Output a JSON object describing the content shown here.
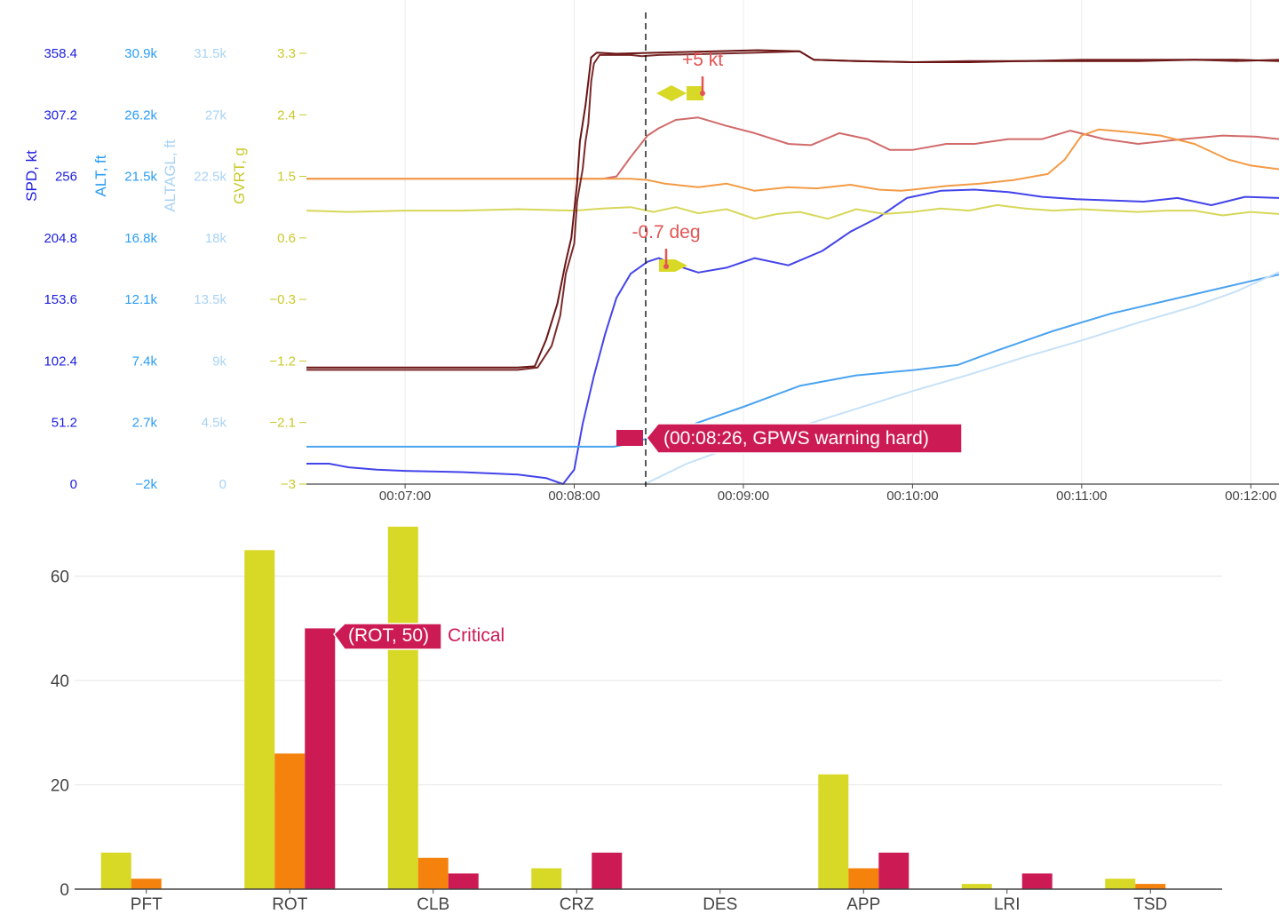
{
  "chart_data": [
    {
      "type": "line",
      "title": "",
      "x_ticks": [
        "00:07:00",
        "00:08:00",
        "00:09:00",
        "00:10:00",
        "00:11:00",
        "00:12:00"
      ],
      "x_tick_seconds": [
        420,
        480,
        540,
        600,
        660,
        720
      ],
      "x_range_seconds": [
        385,
        730
      ],
      "grid": true,
      "y_axes": [
        {
          "id": "spd",
          "label": "SPD, kt",
          "color": "#1e1ee0",
          "range": [
            0,
            358.4
          ],
          "ticks": [
            "0",
            "51.2",
            "102.4",
            "153.6",
            "204.8",
            "256",
            "307.2",
            "358.4"
          ]
        },
        {
          "id": "alt",
          "label": "ALT, ft",
          "color": "#2a9df4",
          "range": [
            -2000,
            30900
          ],
          "ticks": [
            "−2k",
            "2.7k",
            "7.4k",
            "12.1k",
            "16.8k",
            "21.5k",
            "26.2k",
            "30.9k"
          ]
        },
        {
          "id": "altagl",
          "label": "ALTAGL, ft",
          "color": "#a9d3f5",
          "range": [
            0,
            31500
          ],
          "ticks": [
            "0",
            "4.5k",
            "9k",
            "13.5k",
            "18k",
            "22.5k",
            "27k",
            "31.5k"
          ]
        },
        {
          "id": "gvrt",
          "label": "GVRT, g",
          "color": "#c9c92a",
          "range": [
            -3,
            3.3
          ],
          "ticks": [
            "−3",
            "−2.1",
            "−1.2",
            "−0.3",
            "0.6",
            "1.5",
            "2.4",
            "3.3"
          ]
        }
      ],
      "series": [
        {
          "axis": "spd",
          "color": "#4343ea",
          "points": [
            [
              385,
              17
            ],
            [
              393,
              17
            ],
            [
              400,
              14
            ],
            [
              410,
              12
            ],
            [
              420,
              11
            ],
            [
              440,
              10
            ],
            [
              460,
              8
            ],
            [
              470,
              5
            ],
            [
              476,
              0
            ],
            [
              480,
              12
            ],
            [
              483,
              50
            ],
            [
              487,
              90
            ],
            [
              491,
              125
            ],
            [
              495,
              155
            ],
            [
              500,
              175
            ],
            [
              506,
              185
            ],
            [
              510,
              188
            ],
            [
              516,
              182
            ],
            [
              524,
              176
            ],
            [
              534,
              180
            ],
            [
              544,
              188
            ],
            [
              556,
              182
            ],
            [
              568,
              194
            ],
            [
              578,
              210
            ],
            [
              588,
              222
            ],
            [
              598,
              238
            ],
            [
              610,
              244
            ],
            [
              622,
              245
            ],
            [
              634,
              243
            ],
            [
              646,
              239
            ],
            [
              658,
              237
            ],
            [
              670,
              236
            ],
            [
              682,
              235
            ],
            [
              694,
              238
            ],
            [
              706,
              232
            ],
            [
              718,
              239
            ],
            [
              730,
              238
            ]
          ]
        },
        {
          "axis": "spd",
          "color": "#d16a6a",
          "points": [
            [
              385,
              254
            ],
            [
              420,
              254
            ],
            [
              460,
              254
            ],
            [
              490,
              254
            ],
            [
              495,
              256
            ],
            [
              500,
              272
            ],
            [
              506,
              290
            ],
            [
              510,
              296
            ],
            [
              516,
              303
            ],
            [
              524,
              305
            ],
            [
              534,
              298
            ],
            [
              544,
              292
            ],
            [
              556,
              283
            ],
            [
              564,
              282
            ],
            [
              574,
              292
            ],
            [
              584,
              287
            ],
            [
              592,
              278
            ],
            [
              600,
              278
            ],
            [
              612,
              283
            ],
            [
              622,
              283
            ],
            [
              634,
              287
            ],
            [
              646,
              287
            ],
            [
              656,
              294
            ],
            [
              668,
              287
            ],
            [
              680,
              283
            ],
            [
              696,
              287
            ],
            [
              710,
              290
            ],
            [
              722,
              289
            ],
            [
              730,
              287
            ]
          ]
        },
        {
          "axis": "spd",
          "color": "#f39b45",
          "points": [
            [
              385,
              254
            ],
            [
              420,
              254
            ],
            [
              460,
              254
            ],
            [
              490,
              254
            ],
            [
              500,
              254
            ],
            [
              506,
              253
            ],
            [
              512,
              250
            ],
            [
              524,
              247
            ],
            [
              534,
              250
            ],
            [
              544,
              244
            ],
            [
              556,
              247
            ],
            [
              566,
              246
            ],
            [
              578,
              249
            ],
            [
              588,
              245
            ],
            [
              596,
              244
            ],
            [
              600,
              245
            ],
            [
              612,
              248
            ],
            [
              624,
              250
            ],
            [
              636,
              253
            ],
            [
              648,
              258
            ],
            [
              654,
              270
            ],
            [
              660,
              290
            ],
            [
              666,
              295
            ],
            [
              676,
              293
            ],
            [
              688,
              290
            ],
            [
              700,
              283
            ],
            [
              712,
              270
            ],
            [
              720,
              265
            ],
            [
              730,
              262
            ]
          ]
        },
        {
          "axis": "gvrt",
          "color": "#d7d75a",
          "points": [
            [
              385,
              1.0
            ],
            [
              400,
              0.98
            ],
            [
              420,
              1.0
            ],
            [
              440,
              1.0
            ],
            [
              460,
              1.02
            ],
            [
              480,
              1.0
            ],
            [
              490,
              1.03
            ],
            [
              500,
              1.05
            ],
            [
              508,
              0.98
            ],
            [
              516,
              1.05
            ],
            [
              524,
              0.96
            ],
            [
              534,
              1.02
            ],
            [
              544,
              0.88
            ],
            [
              552,
              0.95
            ],
            [
              560,
              0.98
            ],
            [
              570,
              0.88
            ],
            [
              580,
              1.02
            ],
            [
              590,
              0.95
            ],
            [
              600,
              0.98
            ],
            [
              610,
              1.03
            ],
            [
              620,
              1.0
            ],
            [
              630,
              1.08
            ],
            [
              640,
              1.03
            ],
            [
              650,
              1.0
            ],
            [
              660,
              1.02
            ],
            [
              670,
              1.0
            ],
            [
              680,
              0.98
            ],
            [
              690,
              1.0
            ],
            [
              700,
              1.0
            ],
            [
              710,
              0.93
            ],
            [
              720,
              0.98
            ],
            [
              730,
              0.95
            ]
          ]
        },
        {
          "axis": "alt",
          "color": "#4aa3f0",
          "points": [
            [
              385,
              853
            ],
            [
              420,
              853
            ],
            [
              460,
              853
            ],
            [
              494,
              853
            ],
            [
              500,
              1100
            ],
            [
              520,
              2400
            ],
            [
              540,
              3900
            ],
            [
              560,
              5500
            ],
            [
              580,
              6300
            ],
            [
              600,
              6700
            ],
            [
              616,
              7100
            ],
            [
              630,
              8200
            ],
            [
              650,
              9700
            ],
            [
              670,
              11000
            ],
            [
              690,
              12000
            ],
            [
              710,
              13000
            ],
            [
              730,
              14000
            ]
          ]
        },
        {
          "axis": "altagl",
          "color": "#c6e1f8",
          "points": [
            [
              505,
              0
            ],
            [
              520,
              1500
            ],
            [
              540,
              3000
            ],
            [
              560,
              4200
            ],
            [
              580,
              5500
            ],
            [
              600,
              6800
            ],
            [
              620,
              8000
            ],
            [
              640,
              9300
            ],
            [
              660,
              10500
            ],
            [
              680,
              11800
            ],
            [
              700,
              13000
            ],
            [
              715,
              14100
            ],
            [
              730,
              15500
            ]
          ]
        },
        {
          "axis": "spd",
          "color": "#7a2a2a",
          "points": [
            [
              385,
              95
            ],
            [
              420,
              95
            ],
            [
              460,
              95
            ],
            [
              467,
              97
            ],
            [
              472,
              115
            ],
            [
              475,
              140
            ],
            [
              477,
              175
            ],
            [
              480,
              200
            ],
            [
              481,
              235
            ],
            [
              483,
              262
            ],
            [
              484,
              285
            ],
            [
              485,
              300
            ],
            [
              486,
              335
            ],
            [
              487,
              350
            ],
            [
              489,
              357
            ],
            [
              495,
              357
            ],
            [
              500,
              357
            ],
            [
              504,
              356
            ],
            [
              510,
              357
            ],
            [
              530,
              358
            ],
            [
              545,
              359
            ],
            [
              560,
              360
            ],
            [
              565,
              353
            ],
            [
              580,
              352
            ],
            [
              600,
              351
            ],
            [
              620,
              352
            ],
            [
              640,
              352
            ],
            [
              660,
              353
            ],
            [
              680,
              353
            ],
            [
              700,
              353
            ],
            [
              715,
              352
            ],
            [
              730,
              353
            ]
          ]
        },
        {
          "axis": "spd",
          "color": "#6b1414",
          "points": [
            [
              385,
              97
            ],
            [
              420,
              97
            ],
            [
              460,
              97
            ],
            [
              466,
              98
            ],
            [
              470,
              120
            ],
            [
              474,
              150
            ],
            [
              477,
              185
            ],
            [
              479,
              205
            ],
            [
              481,
              250
            ],
            [
              482,
              285
            ],
            [
              484,
              315
            ],
            [
              486,
              355
            ],
            [
              488,
              359
            ],
            [
              495,
              358
            ],
            [
              510,
              359
            ],
            [
              530,
              360
            ],
            [
              545,
              361
            ],
            [
              560,
              360
            ],
            [
              565,
              353
            ],
            [
              580,
              352
            ],
            [
              600,
              351
            ],
            [
              620,
              351
            ],
            [
              640,
              352
            ],
            [
              660,
              352
            ],
            [
              680,
              352
            ],
            [
              700,
              353
            ],
            [
              715,
              353
            ],
            [
              730,
              352
            ]
          ]
        }
      ],
      "annotations": [
        {
          "text": "+5 kt",
          "color": "#e25555"
        },
        {
          "text": "-0.7 deg",
          "color": "#e25555"
        },
        {
          "text": "(00:08:26, GPWS warning hard)",
          "color": "#ffffff",
          "background": "#cc1b54"
        }
      ]
    },
    {
      "type": "bar",
      "title": "",
      "categories": [
        "PFT",
        "ROT",
        "CLB",
        "CRZ",
        "DES",
        "APP",
        "LRI",
        "TSD"
      ],
      "ylim": [
        0,
        70
      ],
      "y_ticks": [
        0,
        20,
        40,
        60
      ],
      "grid": true,
      "series": [
        {
          "color": "#d8d826",
          "values": [
            7,
            65,
            69.5,
            4,
            0,
            22,
            1,
            2
          ]
        },
        {
          "color": "#f5820d",
          "values": [
            2,
            26,
            6,
            0,
            0,
            4,
            0,
            1
          ]
        },
        {
          "name": "Critical",
          "color": "#cc1b54",
          "values": [
            0,
            50,
            3,
            7,
            0,
            7,
            3,
            0
          ]
        }
      ],
      "tooltip": {
        "text": "(ROT, 50)",
        "series_name": "Critical"
      }
    }
  ]
}
